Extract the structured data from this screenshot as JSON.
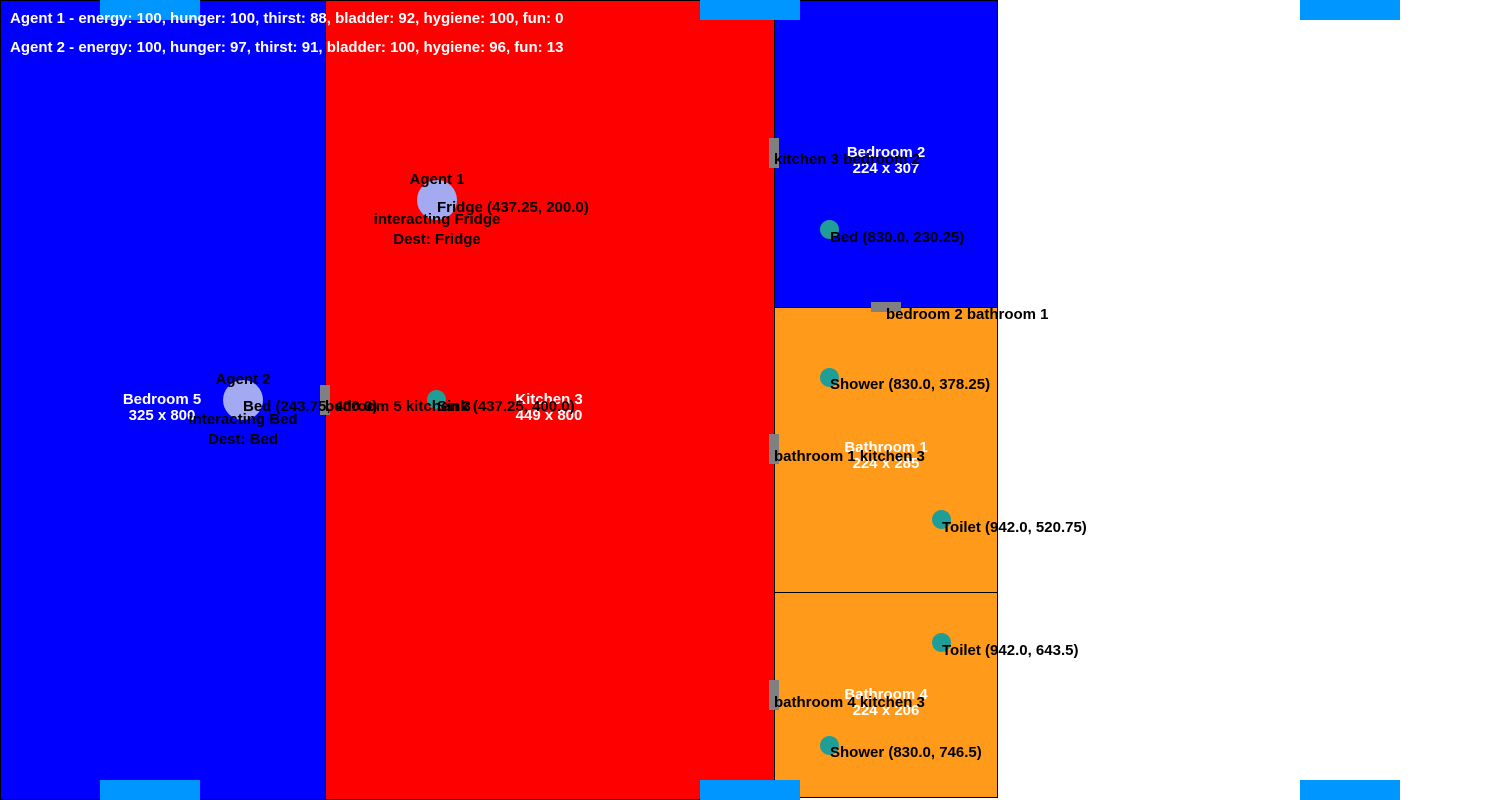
{
  "hud": {
    "agent1_status": "Agent 1 - energy: 100, hunger: 100, thirst: 88, bladder: 92, hygiene: 100, fun: 0",
    "agent2_status": "Agent 2 - energy: 100, hunger: 97, thirst: 91, bladder: 100, hygiene: 96, fun: 13"
  },
  "rooms": {
    "bedroom5": {
      "name": "Bedroom 5",
      "size": "325 x 800"
    },
    "kitchen3": {
      "name": "Kitchen 3",
      "size": "449 x 800"
    },
    "bedroom2": {
      "name": "Bedroom 2",
      "size": "224 x 307"
    },
    "bathroom1": {
      "name": "Bathroom 1",
      "size": "224 x 285"
    },
    "bathroom4": {
      "name": "Bathroom 4",
      "size": "224 x 206"
    }
  },
  "doors": {
    "kitchen3_bedroom2": "kitchen 3 bedroom 2",
    "bedroom2_bathroom1": "bedroom 2 bathroom 1",
    "bedroom5_kitchen3": "bedroom 5 kitchen 3",
    "bathroom1_kitchen3": "bathroom 1 kitchen 3",
    "bathroom4_kitchen3": "bathroom 4 kitchen 3"
  },
  "objects": {
    "fridge": "Fridge (437.25, 200.0)",
    "bed_bedroom2": "Bed (830.0, 230.25)",
    "shower_bathroom1": "Shower (830.0, 378.25)",
    "bed_bedroom5": "Bed (243.75, 400.0)",
    "sink": "Sink (437.25, 400.0)",
    "toilet_bathroom1": "Toilet (942.0, 520.75)",
    "toilet_bathroom4": "Toilet (942.0, 643.5)",
    "shower_bathroom4": "Shower (830.0, 746.5)"
  },
  "agents": {
    "agent1": {
      "name": "Agent 1",
      "action": "interacting Fridge",
      "dest": "Dest: Fridge"
    },
    "agent2": {
      "name": "Agent 2",
      "action": "interacting Bed",
      "dest": "Dest: Bed"
    }
  },
  "colors": {
    "bedroom": "#0000ff",
    "kitchen": "#ff0000",
    "bathroom": "#ff9a1a",
    "object": "#1e9e96",
    "agent": "#a3aaf2",
    "door": "#808080",
    "marker": "#0096ff"
  }
}
